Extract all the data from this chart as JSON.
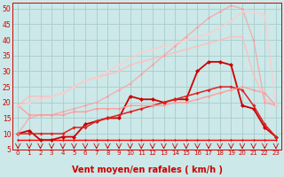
{
  "bg_color": "#cce8e8",
  "grid_color": "#aacccc",
  "xlabel": "Vent moyen/en rafales ( km/h )",
  "xlabel_color": "#cc0000",
  "xlabel_fontsize": 7,
  "tick_color": "#cc0000",
  "ylim": [
    5,
    52
  ],
  "xlim": [
    -0.5,
    23.5
  ],
  "yticks": [
    5,
    10,
    15,
    20,
    25,
    30,
    35,
    40,
    45,
    50
  ],
  "xticks": [
    0,
    1,
    2,
    3,
    4,
    5,
    6,
    7,
    8,
    9,
    10,
    11,
    12,
    13,
    14,
    15,
    16,
    17,
    18,
    19,
    20,
    21,
    22,
    23
  ],
  "lines": [
    {
      "x": [
        0,
        1,
        2,
        3,
        4,
        5,
        6,
        7,
        8,
        9,
        10,
        11,
        12,
        13,
        14,
        15,
        16,
        17,
        18,
        19,
        20,
        21,
        22,
        23
      ],
      "y": [
        8,
        8,
        8,
        8,
        8,
        8,
        8,
        8,
        8,
        8,
        8,
        8,
        8,
        8,
        8,
        8,
        8,
        8,
        8,
        8,
        8,
        8,
        8,
        8
      ],
      "color": "#ff0000",
      "alpha": 1.0,
      "lw": 1.0,
      "marker": "D",
      "ms": 1.5
    },
    {
      "x": [
        0,
        1,
        2,
        3,
        4,
        5,
        6,
        7,
        8,
        9,
        10,
        11,
        12,
        13,
        14,
        15,
        16,
        17,
        18,
        19,
        20,
        21,
        22,
        23
      ],
      "y": [
        10,
        11,
        8,
        8,
        9,
        9,
        13,
        14,
        15,
        15,
        22,
        21,
        21,
        20,
        21,
        21,
        30,
        33,
        33,
        32,
        19,
        18,
        12,
        9
      ],
      "color": "#cc0000",
      "alpha": 1.0,
      "lw": 1.3,
      "marker": "D",
      "ms": 2.5
    },
    {
      "x": [
        0,
        1,
        2,
        3,
        4,
        5,
        6,
        7,
        8,
        9,
        10,
        11,
        12,
        13,
        14,
        15,
        16,
        17,
        18,
        19,
        20,
        21,
        22,
        23
      ],
      "y": [
        10,
        10,
        10,
        10,
        10,
        12,
        12,
        14,
        15,
        16,
        17,
        18,
        19,
        20,
        21,
        22,
        23,
        24,
        25,
        25,
        24,
        19,
        13,
        9
      ],
      "color": "#dd2222",
      "alpha": 1.0,
      "lw": 1.1,
      "marker": "D",
      "ms": 2.0
    },
    {
      "x": [
        0,
        1,
        2,
        3,
        4,
        5,
        6,
        7,
        8,
        9,
        10,
        11,
        12,
        13,
        14,
        15,
        16,
        17,
        18,
        19,
        20,
        21,
        22,
        23
      ],
      "y": [
        19,
        16,
        16,
        16,
        16,
        17,
        17,
        18,
        18,
        18,
        19,
        19,
        19,
        19,
        20,
        20,
        21,
        22,
        23,
        24,
        25,
        24,
        23,
        19
      ],
      "color": "#ff9999",
      "alpha": 0.9,
      "lw": 1.0,
      "marker": "D",
      "ms": 1.8
    },
    {
      "x": [
        0,
        1,
        2,
        3,
        4,
        5,
        6,
        7,
        8,
        9,
        10,
        11,
        12,
        13,
        14,
        15,
        16,
        17,
        18,
        19,
        20,
        21,
        22,
        23
      ],
      "y": [
        19,
        22,
        22,
        22,
        23,
        25,
        27,
        28,
        29,
        30,
        32,
        33,
        34,
        35,
        36,
        37,
        38,
        39,
        40,
        41,
        41,
        29,
        21,
        19
      ],
      "color": "#ffbbbb",
      "alpha": 0.85,
      "lw": 1.0,
      "marker": "D",
      "ms": 1.8
    },
    {
      "x": [
        0,
        1,
        2,
        3,
        4,
        5,
        6,
        7,
        8,
        9,
        10,
        11,
        12,
        13,
        14,
        15,
        16,
        17,
        18,
        19,
        20,
        21,
        22,
        23
      ],
      "y": [
        10,
        15,
        16,
        16,
        17,
        18,
        19,
        20,
        22,
        24,
        26,
        29,
        32,
        35,
        38,
        41,
        44,
        47,
        49,
        51,
        50,
        40,
        20,
        19
      ],
      "color": "#ff9999",
      "alpha": 0.7,
      "lw": 1.0,
      "marker": "D",
      "ms": 1.8
    },
    {
      "x": [
        0,
        1,
        2,
        3,
        4,
        5,
        6,
        7,
        8,
        9,
        10,
        11,
        12,
        13,
        14,
        15,
        16,
        17,
        18,
        19,
        20,
        21,
        22,
        23
      ],
      "y": [
        19,
        20,
        21,
        22,
        23,
        25,
        27,
        28,
        30,
        32,
        34,
        36,
        37,
        38,
        39,
        40,
        41,
        42,
        44,
        46,
        49,
        49,
        48,
        19
      ],
      "color": "#ffcccc",
      "alpha": 0.85,
      "lw": 1.0,
      "marker": "D",
      "ms": 1.8
    }
  ]
}
